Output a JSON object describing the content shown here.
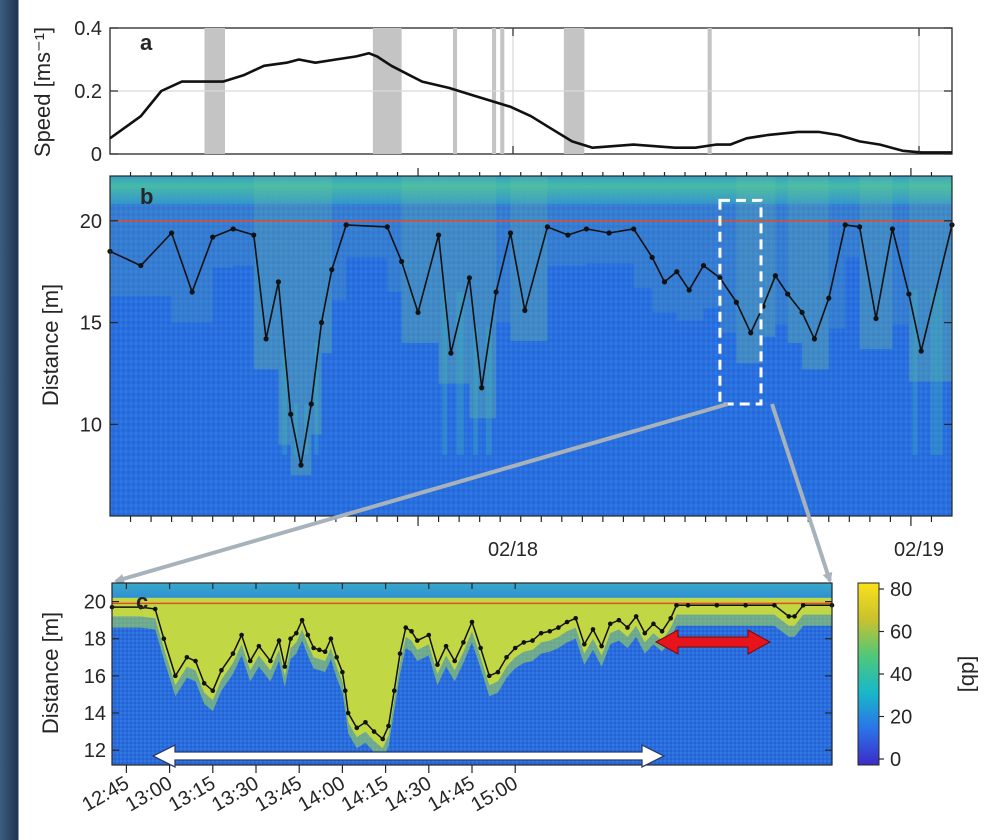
{
  "chart_data": [
    {
      "panel": "a",
      "type": "line",
      "ylabel": "Speed [ms⁻¹]",
      "ylim": [
        0,
        0.4
      ],
      "yticks": [
        "0",
        "0.2",
        "0.4"
      ],
      "grid": true,
      "x_range": [
        "02/17 09:00",
        "02/19 01:00"
      ],
      "xticks_major": [
        "02/18",
        "02/19"
      ],
      "series": [
        {
          "color": "#111111",
          "x_hours": [
            0.0,
            1.5,
            2.5,
            3.5,
            4.6,
            5.5,
            6.5,
            7.5,
            8.6,
            9.2,
            10,
            11,
            12,
            12.6,
            13,
            13.7,
            14.6,
            15.2,
            16.5,
            17.5,
            18.5,
            19.5,
            20.5,
            21.5,
            22.5,
            23.5,
            25.5,
            27.5,
            28.5,
            29.5,
            30.2,
            31,
            32,
            33.5,
            34.5,
            35.5,
            36.5,
            37.5,
            38.6,
            39.5,
            41
          ],
          "y": [
            0.05,
            0.12,
            0.2,
            0.23,
            0.23,
            0.23,
            0.25,
            0.28,
            0.29,
            0.3,
            0.29,
            0.3,
            0.31,
            0.32,
            0.31,
            0.28,
            0.25,
            0.23,
            0.21,
            0.19,
            0.17,
            0.15,
            0.12,
            0.08,
            0.04,
            0.02,
            0.03,
            0.02,
            0.02,
            0.03,
            0.03,
            0.05,
            0.06,
            0.07,
            0.07,
            0.06,
            0.04,
            0.03,
            0.01,
            0.005,
            0.005
          ]
        }
      ],
      "gray_bars_x_hours": [
        [
          4.6,
          5.6
        ],
        [
          12.8,
          14.2
        ],
        [
          16.7,
          16.9
        ],
        [
          18.6,
          18.8
        ],
        [
          19.0,
          19.2
        ],
        [
          22.1,
          23.1
        ],
        [
          29.1,
          29.3
        ]
      ]
    },
    {
      "panel": "b",
      "type": "heatmap",
      "ylabel": "Distance [m]",
      "ylim": [
        5.5,
        22.2
      ],
      "yticks": [
        "10",
        "15",
        "20"
      ],
      "colorbar_range": [
        0,
        80
      ],
      "overlay_surface_m": 20.0,
      "overlay_profile_x_hours": [
        0,
        1.5,
        3,
        4,
        5,
        6,
        7,
        7.6,
        8.2,
        8.8,
        9.3,
        9.8,
        10.3,
        10.8,
        11.5,
        13.5,
        14.2,
        15,
        16,
        16.6,
        17.5,
        18.1,
        18.8,
        19.5,
        20.2,
        21.3,
        22.3,
        23.2,
        24.3,
        25.5,
        26.4,
        27,
        27.6,
        28.2,
        28.9,
        29.7,
        30.5,
        31.2,
        31.8,
        32.4,
        33,
        33.7,
        34.3,
        35,
        35.8,
        36.5,
        37.3,
        38.1,
        38.9,
        39.5,
        41
      ],
      "overlay_profile_depth_m": [
        18.5,
        17.8,
        19.4,
        16.5,
        19.2,
        19.6,
        19.3,
        14.2,
        17,
        10.5,
        8,
        11,
        15,
        17.6,
        19.8,
        19.7,
        18,
        15.5,
        19.3,
        13.5,
        17.2,
        11.8,
        16.5,
        19.4,
        15.6,
        19.7,
        19.3,
        19.6,
        19.4,
        19.6,
        18.2,
        17,
        17.5,
        16.6,
        17.8,
        17.2,
        16,
        14.5,
        15.8,
        17.3,
        16.4,
        15.5,
        14.2,
        16.2,
        19.8,
        19.7,
        15.2,
        19.6,
        16.4,
        13.6,
        19.8
      ],
      "highlight_box_x_hours": [
        29.7,
        31.7
      ],
      "highlight_box_y_m": [
        11,
        21
      ]
    },
    {
      "panel": "c",
      "type": "heatmap",
      "ylabel": "Distance [m]",
      "ylim": [
        11.2,
        21
      ],
      "yticks": [
        "12",
        "14",
        "16",
        "18",
        "20"
      ],
      "xticks": [
        "12:45",
        "13:00",
        "13:15",
        "13:30",
        "13:45",
        "14:00",
        "14:15",
        "14:30",
        "14:45",
        "15:00"
      ],
      "overlay_profile_minutes": [
        0,
        10,
        15,
        18,
        22,
        26,
        29,
        32,
        35,
        38,
        42,
        45,
        48,
        51,
        55,
        58,
        60,
        62,
        64,
        66,
        68,
        70,
        72,
        74,
        76,
        78,
        80,
        81,
        82,
        85,
        88,
        91,
        94,
        96,
        98,
        100,
        102,
        104,
        106,
        110,
        113,
        116,
        119,
        122,
        125,
        128,
        131,
        134,
        137,
        140,
        143,
        146,
        149,
        152,
        155,
        158,
        161,
        164,
        167,
        170,
        173,
        176,
        179,
        182,
        185,
        188,
        191,
        194,
        196,
        200,
        210,
        220,
        230,
        235,
        237,
        240,
        250
      ],
      "overlay_profile_depth_m": [
        19.7,
        19.7,
        19.6,
        18,
        16,
        17,
        16.8,
        15.6,
        15.2,
        16.3,
        17.2,
        18.2,
        16.8,
        17.6,
        16.8,
        17.9,
        16.5,
        18,
        18.3,
        19,
        18.2,
        17.5,
        17.4,
        17.3,
        18,
        17,
        16.2,
        15.2,
        14,
        13.2,
        13.5,
        13,
        12.6,
        13.3,
        15.2,
        17.2,
        18.6,
        18.4,
        17.9,
        18.2,
        16.6,
        17.6,
        16.8,
        17.8,
        18.9,
        17.5,
        16,
        16.2,
        17,
        17.5,
        17.8,
        17.9,
        18.3,
        18.4,
        18.6,
        18.9,
        19.1,
        17.7,
        18.5,
        17.6,
        18.8,
        19,
        18.6,
        19.2,
        18.3,
        18.8,
        18.4,
        19.1,
        19.8,
        19.8,
        19.8,
        19.8,
        19.8,
        19.2,
        19.2,
        19.8,
        19.8
      ]
    },
    {
      "type": "colorbar",
      "label": "[db]",
      "ticks": [
        "0",
        "20",
        "40",
        "60",
        "80"
      ],
      "range": [
        0,
        80
      ],
      "colors": [
        "#3b2bc8",
        "#2b74e8",
        "#18b8c8",
        "#4fc87a",
        "#c9c22e",
        "#f9e11a"
      ]
    }
  ]
}
